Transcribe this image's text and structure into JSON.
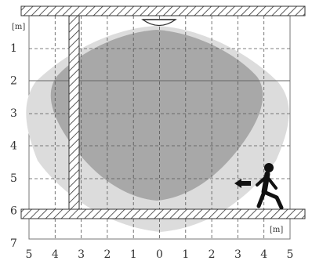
{
  "diagram": {
    "unit_label_y": "[m]",
    "unit_label_x": "[m]",
    "y_ticks": [
      "1",
      "2",
      "3",
      "4",
      "5",
      "6",
      "7"
    ],
    "x_ticks": [
      "5",
      "4",
      "3",
      "2",
      "1",
      "0",
      "1",
      "2",
      "3",
      "4",
      "5"
    ],
    "colors": {
      "outer_zone": "#dcdcdc",
      "inner_zone": "#a8a8a8",
      "wall_hatch": "#333333",
      "grid_line": "#555555",
      "person": "#111111"
    },
    "icons": [
      "ceiling-sensor-icon",
      "walking-person-icon",
      "approach-arrow-icon"
    ]
  }
}
